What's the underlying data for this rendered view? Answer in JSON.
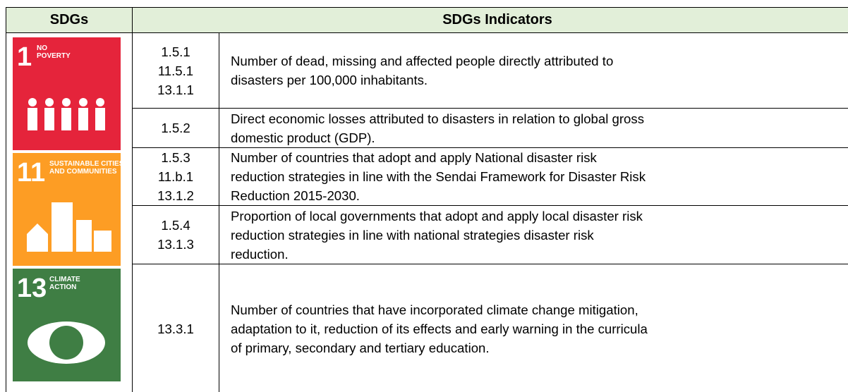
{
  "table": {
    "header": [
      "SDGs",
      "SDGs Indicators"
    ],
    "goals": [
      {
        "number": "1",
        "label": [
          "NO",
          "POVERTY"
        ],
        "color": "#e5243b"
      },
      {
        "number": "11",
        "label": [
          "SUSTAINABLE CITIES",
          "AND COMMUNITIES"
        ],
        "color": "#fd9d24"
      },
      {
        "number": "13",
        "label": [
          "CLIMATE",
          "ACTION"
        ],
        "color": "#3f7e44"
      }
    ],
    "rows": [
      {
        "codes": [
          "1.5.1",
          "11.5.1",
          "13.1.1"
        ],
        "lines": [
          "Number of dead, missing and affected people directly attributed to",
          "disasters per 100,000 inhabitants."
        ]
      },
      {
        "codes": [
          "1.5.2"
        ],
        "lines": [
          "Direct economic losses attributed to disasters in relation to global gross",
          "domestic product (GDP)."
        ]
      },
      {
        "codes": [
          "1.5.3",
          "11.b.1",
          "13.1.2"
        ],
        "lines": [
          "Number of countries that adopt and apply National disaster risk",
          "reduction strategies in line with the Sendai Framework for Disaster Risk",
          "Reduction 2015-2030."
        ]
      },
      {
        "codes": [
          "1.5.4",
          "13.1.3"
        ],
        "lines": [
          "Proportion of local governments that adopt and apply local disaster risk",
          "reduction strategies in line with national strategies disaster risk",
          "reduction."
        ]
      },
      {
        "codes": [
          "13.3.1"
        ],
        "lines": [
          "Number of countries that have incorporated climate change mitigation,",
          "adaptation to it, reduction of its effects and early warning in the curricula",
          "of primary, secondary and tertiary education."
        ]
      }
    ]
  }
}
